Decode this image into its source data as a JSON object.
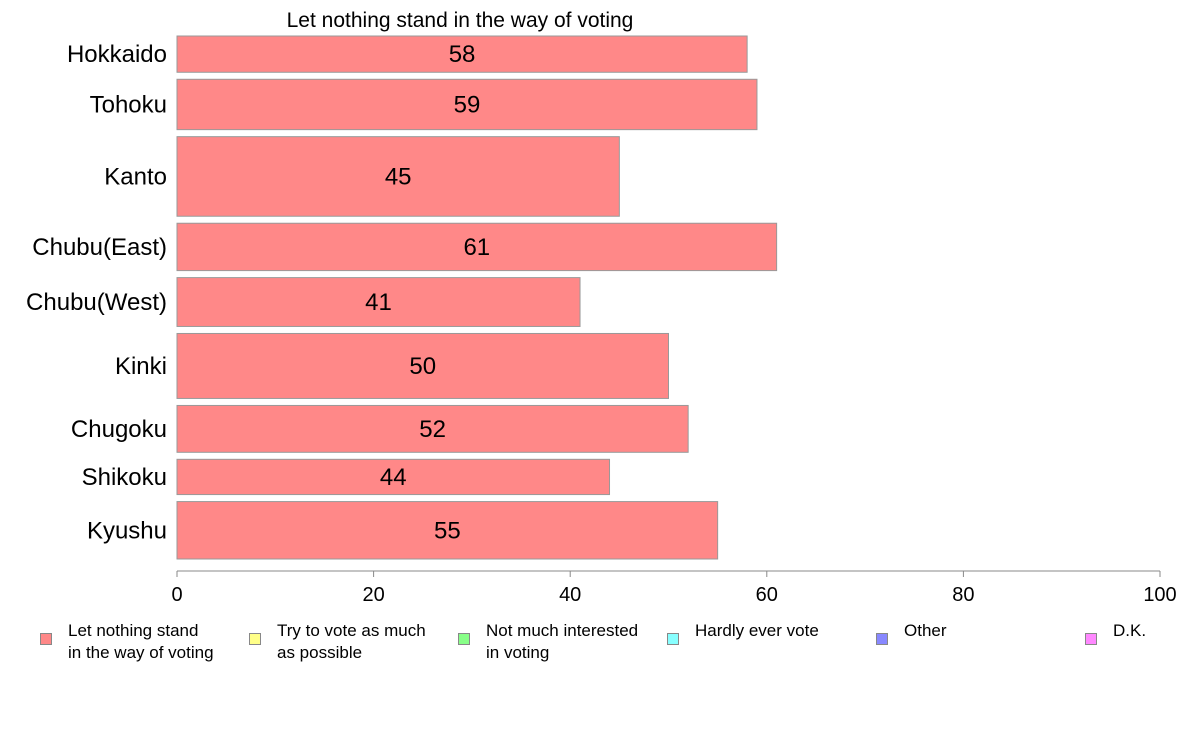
{
  "chart_data": {
    "type": "bar",
    "orientation": "horizontal",
    "title": "Let nothing stand in the way of voting",
    "categories": [
      "Hokkaido",
      "Tohoku",
      "Kanto",
      "Chubu(East)",
      "Chubu(West)",
      "Kinki",
      "Chugoku",
      "Shikoku",
      "Kyushu"
    ],
    "series": [
      {
        "name": "Let nothing stand in the way of voting",
        "values": [
          58,
          59,
          45,
          61,
          41,
          50,
          52,
          44,
          55
        ],
        "value_labels": [
          "58",
          "59",
          "45",
          "61",
          "41",
          "50",
          "52",
          "44",
          "55"
        ],
        "color": "#ff8888"
      }
    ],
    "bar_weights": [
      0.72,
      1.0,
      1.58,
      0.94,
      0.97,
      1.29,
      0.93,
      0.7,
      1.14
    ],
    "xlim": [
      0,
      100
    ],
    "xticks": [
      0,
      20,
      40,
      60,
      80,
      100
    ],
    "xtick_labels": [
      "0",
      "20",
      "40",
      "60",
      "80",
      "100"
    ],
    "grid": false,
    "legend_position": "bottom"
  },
  "legend": [
    {
      "label": "Let nothing stand\nin the way of voting",
      "color": "#ff8888"
    },
    {
      "label": "Try to vote as much\nas possible",
      "color": "#ffff88"
    },
    {
      "label": "Not much interested\nin voting",
      "color": "#88ff88"
    },
    {
      "label": "Hardly ever vote",
      "color": "#88ffff"
    },
    {
      "label": "Other",
      "color": "#8888ff"
    },
    {
      "label": "D.K.",
      "color": "#ff88ff"
    }
  ]
}
